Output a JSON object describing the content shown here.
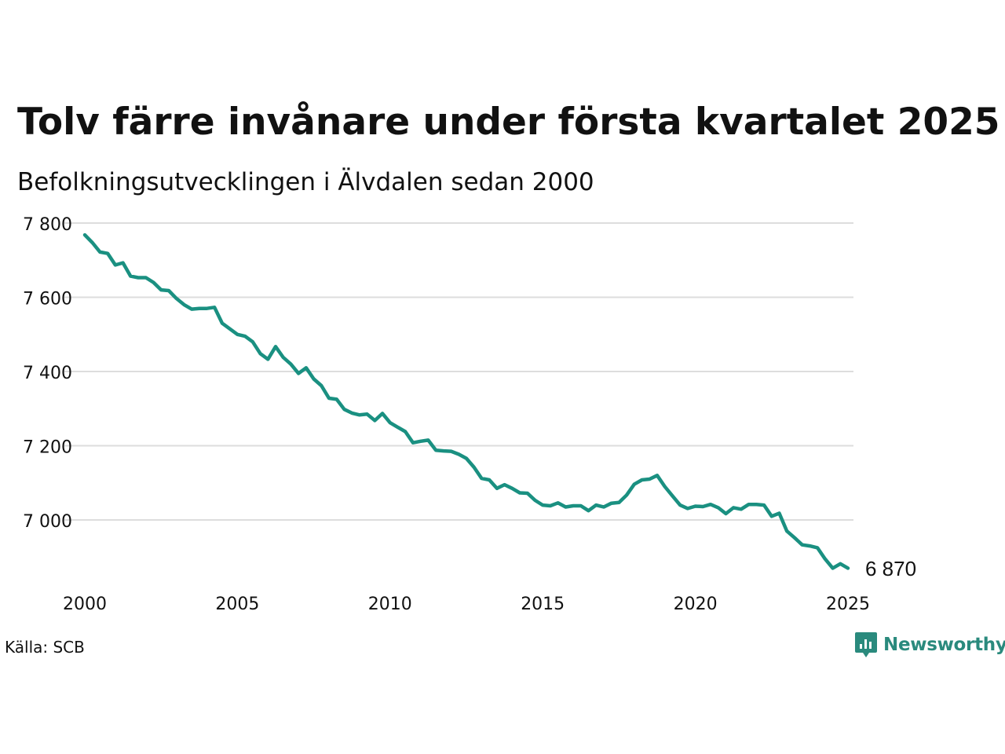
{
  "title": "Tolv färre invånare under första kvartalet 2025",
  "subtitle": "Befolkningsutvecklingen i Älvdalen sedan 2000",
  "source": "Källa: SCB",
  "brand": {
    "name": "Newsworthy",
    "icon": "newsworthy-logo-icon",
    "color": "#2a8a7d"
  },
  "colors": {
    "line": "#1a9081",
    "grid": "#dddddd",
    "text": "#111111"
  },
  "chart_data": {
    "type": "line",
    "x_start": 2000.0,
    "x_step": 0.25,
    "xlim": [
      2000,
      2025
    ],
    "ylim": [
      6850,
      7800
    ],
    "y_ticks": [
      7000,
      7200,
      7400,
      7600,
      7800
    ],
    "y_tick_labels": [
      "7 000",
      "7 200",
      "7 400",
      "7 600",
      "7 800"
    ],
    "x_ticks": [
      2000,
      2005,
      2010,
      2015,
      2020,
      2025
    ],
    "x_tick_labels": [
      "2000",
      "2005",
      "2010",
      "2015",
      "2020",
      "2025"
    ],
    "grid": true,
    "end_label": "6 870",
    "series": [
      {
        "values": [
          7768,
          7747,
          7722,
          7718,
          7687,
          7693,
          7657,
          7653,
          7653,
          7640,
          7620,
          7618,
          7597,
          7580,
          7568,
          7570,
          7570,
          7573,
          7530,
          7515,
          7500,
          7495,
          7480,
          7448,
          7433,
          7467,
          7438,
          7420,
          7395,
          7410,
          7380,
          7362,
          7328,
          7325,
          7298,
          7288,
          7283,
          7285,
          7268,
          7287,
          7262,
          7250,
          7238,
          7208,
          7212,
          7215,
          7188,
          7186,
          7185,
          7177,
          7166,
          7142,
          7112,
          7108,
          7085,
          7095,
          7085,
          7073,
          7072,
          7053,
          7040,
          7038,
          7046,
          7035,
          7038,
          7038,
          7025,
          7040,
          7035,
          7045,
          7047,
          7067,
          7096,
          7108,
          7110,
          7120,
          7090,
          7065,
          7040,
          7031,
          7037,
          7036,
          7042,
          7033,
          7017,
          7033,
          7029,
          7042,
          7042,
          7040,
          7010,
          7018,
          6970,
          6952,
          6933,
          6930,
          6925,
          6895,
          6870,
          6882,
          6870
        ]
      }
    ]
  }
}
